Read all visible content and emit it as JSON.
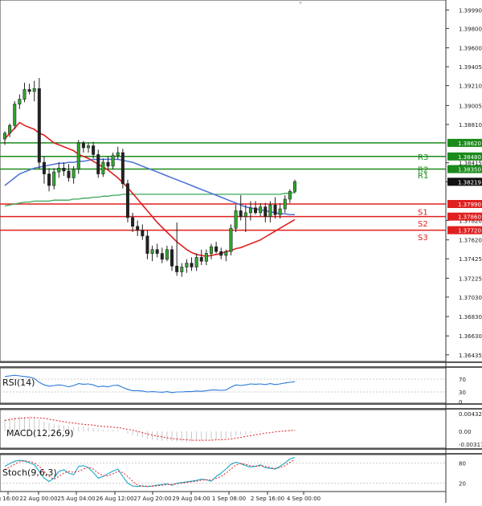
{
  "chart_data": {
    "type": "candlestick",
    "main": {
      "y_ticks": [
        "1.39990",
        "1.39800",
        "1.39600",
        "1.39405",
        "1.39210",
        "1.39005",
        "1.38810",
        "1.38415",
        "1.38219",
        "1.37820",
        "1.37620",
        "1.37425",
        "1.37225",
        "1.37030",
        "1.36830",
        "1.36630",
        "1.36435"
      ],
      "ylim": [
        1.364,
        1.4006
      ],
      "x_ticks": [
        "g 16:00",
        "22 Aug 00:00",
        "25 Aug 04:00",
        "26 Aug 12:00",
        "27 Aug 20:00",
        "29 Aug 04:00",
        "1 Sep 08:00",
        "2 Sep 16:00",
        "4 Sep 00:00"
      ],
      "candles": [
        {
          "o": 1.3866,
          "h": 1.3874,
          "l": 1.386,
          "c": 1.3872
        },
        {
          "o": 1.3872,
          "h": 1.3882,
          "l": 1.3868,
          "c": 1.388
        },
        {
          "o": 1.388,
          "h": 1.3905,
          "l": 1.3876,
          "c": 1.3902
        },
        {
          "o": 1.3902,
          "h": 1.3912,
          "l": 1.3897,
          "c": 1.3907
        },
        {
          "o": 1.3907,
          "h": 1.3924,
          "l": 1.3904,
          "c": 1.3917
        },
        {
          "o": 1.3917,
          "h": 1.3923,
          "l": 1.3912,
          "c": 1.3915
        },
        {
          "o": 1.3915,
          "h": 1.3926,
          "l": 1.3905,
          "c": 1.3918
        },
        {
          "o": 1.3918,
          "h": 1.3929,
          "l": 1.3835,
          "c": 1.3842
        },
        {
          "o": 1.3842,
          "h": 1.3848,
          "l": 1.382,
          "c": 1.383
        },
        {
          "o": 1.383,
          "h": 1.3836,
          "l": 1.3812,
          "c": 1.3818
        },
        {
          "o": 1.3818,
          "h": 1.3836,
          "l": 1.3814,
          "c": 1.3832
        },
        {
          "o": 1.3832,
          "h": 1.3842,
          "l": 1.3826,
          "c": 1.3836
        },
        {
          "o": 1.3836,
          "h": 1.3842,
          "l": 1.3828,
          "c": 1.3833
        },
        {
          "o": 1.3833,
          "h": 1.384,
          "l": 1.3822,
          "c": 1.3826
        },
        {
          "o": 1.3826,
          "h": 1.3838,
          "l": 1.382,
          "c": 1.3835
        },
        {
          "o": 1.3835,
          "h": 1.3865,
          "l": 1.383,
          "c": 1.3862
        },
        {
          "o": 1.3862,
          "h": 1.3864,
          "l": 1.3852,
          "c": 1.3857
        },
        {
          "o": 1.3857,
          "h": 1.3862,
          "l": 1.3852,
          "c": 1.3859
        },
        {
          "o": 1.3859,
          "h": 1.3863,
          "l": 1.3846,
          "c": 1.385
        },
        {
          "o": 1.385,
          "h": 1.3855,
          "l": 1.3826,
          "c": 1.383
        },
        {
          "o": 1.383,
          "h": 1.3846,
          "l": 1.3827,
          "c": 1.3842
        },
        {
          "o": 1.3842,
          "h": 1.3848,
          "l": 1.3834,
          "c": 1.3838
        },
        {
          "o": 1.3838,
          "h": 1.3852,
          "l": 1.3835,
          "c": 1.3849
        },
        {
          "o": 1.3849,
          "h": 1.3858,
          "l": 1.3845,
          "c": 1.3852
        },
        {
          "o": 1.3852,
          "h": 1.3856,
          "l": 1.3815,
          "c": 1.382
        },
        {
          "o": 1.382,
          "h": 1.3824,
          "l": 1.378,
          "c": 1.3785
        },
        {
          "o": 1.3785,
          "h": 1.379,
          "l": 1.377,
          "c": 1.3776
        },
        {
          "o": 1.3776,
          "h": 1.3782,
          "l": 1.3766,
          "c": 1.3772
        },
        {
          "o": 1.3772,
          "h": 1.3778,
          "l": 1.3762,
          "c": 1.3766
        },
        {
          "o": 1.3766,
          "h": 1.3772,
          "l": 1.3742,
          "c": 1.3748
        },
        {
          "o": 1.3748,
          "h": 1.3756,
          "l": 1.374,
          "c": 1.3752
        },
        {
          "o": 1.3752,
          "h": 1.3758,
          "l": 1.3744,
          "c": 1.3748
        },
        {
          "o": 1.3748,
          "h": 1.3754,
          "l": 1.3738,
          "c": 1.3742
        },
        {
          "o": 1.3742,
          "h": 1.3756,
          "l": 1.374,
          "c": 1.3752
        },
        {
          "o": 1.3752,
          "h": 1.3756,
          "l": 1.373,
          "c": 1.3735
        },
        {
          "o": 1.3735,
          "h": 1.378,
          "l": 1.3725,
          "c": 1.3729
        },
        {
          "o": 1.3729,
          "h": 1.3738,
          "l": 1.3724,
          "c": 1.3734
        },
        {
          "o": 1.3734,
          "h": 1.3742,
          "l": 1.3728,
          "c": 1.3738
        },
        {
          "o": 1.3738,
          "h": 1.3744,
          "l": 1.373,
          "c": 1.3734
        },
        {
          "o": 1.3734,
          "h": 1.3748,
          "l": 1.373,
          "c": 1.3744
        },
        {
          "o": 1.3744,
          "h": 1.3752,
          "l": 1.3736,
          "c": 1.374
        },
        {
          "o": 1.374,
          "h": 1.3752,
          "l": 1.3736,
          "c": 1.3748
        },
        {
          "o": 1.3748,
          "h": 1.3758,
          "l": 1.3742,
          "c": 1.3755
        },
        {
          "o": 1.3755,
          "h": 1.376,
          "l": 1.3748,
          "c": 1.375
        },
        {
          "o": 1.375,
          "h": 1.3754,
          "l": 1.3742,
          "c": 1.3746
        },
        {
          "o": 1.3746,
          "h": 1.3752,
          "l": 1.374,
          "c": 1.375
        },
        {
          "o": 1.375,
          "h": 1.3778,
          "l": 1.3746,
          "c": 1.3774
        },
        {
          "o": 1.3774,
          "h": 1.3798,
          "l": 1.377,
          "c": 1.3792
        },
        {
          "o": 1.3792,
          "h": 1.3808,
          "l": 1.3782,
          "c": 1.3786
        },
        {
          "o": 1.3786,
          "h": 1.3798,
          "l": 1.377,
          "c": 1.379
        },
        {
          "o": 1.379,
          "h": 1.3802,
          "l": 1.3782,
          "c": 1.3795
        },
        {
          "o": 1.3795,
          "h": 1.3802,
          "l": 1.3788,
          "c": 1.379
        },
        {
          "o": 1.379,
          "h": 1.38,
          "l": 1.3786,
          "c": 1.3796
        },
        {
          "o": 1.3796,
          "h": 1.38,
          "l": 1.378,
          "c": 1.3786
        },
        {
          "o": 1.3786,
          "h": 1.3802,
          "l": 1.378,
          "c": 1.3798
        },
        {
          "o": 1.3798,
          "h": 1.3806,
          "l": 1.3784,
          "c": 1.3788
        },
        {
          "o": 1.3788,
          "h": 1.38,
          "l": 1.3784,
          "c": 1.3794
        },
        {
          "o": 1.3794,
          "h": 1.3808,
          "l": 1.379,
          "c": 1.3804
        },
        {
          "o": 1.3804,
          "h": 1.3814,
          "l": 1.38,
          "c": 1.3812
        },
        {
          "o": 1.3812,
          "h": 1.3824,
          "l": 1.381,
          "c": 1.3822
        }
      ],
      "ma_slow_red": [
        1.3866,
        1.3872,
        1.3877,
        1.3883,
        1.388,
        1.3878,
        1.3876,
        1.3872,
        1.387,
        1.3866,
        1.3862,
        1.386,
        1.3858,
        1.3856,
        1.3854,
        1.385,
        1.3848,
        1.3846,
        1.3843,
        1.384,
        1.3837,
        1.3834,
        1.383,
        1.3826,
        1.3821,
        1.3816,
        1.381,
        1.3804,
        1.3798,
        1.3792,
        1.3786,
        1.378,
        1.3775,
        1.377,
        1.3765,
        1.376,
        1.3756,
        1.3752,
        1.3749,
        1.3747,
        1.3746,
        1.3745,
        1.3746,
        1.3747,
        1.3748,
        1.375,
        1.3751,
        1.3753,
        1.3754,
        1.3756,
        1.3758,
        1.376,
        1.3762,
        1.3765,
        1.3768,
        1.3771,
        1.3774,
        1.3777,
        1.378,
        1.3783
      ],
      "ma_blue": [
        1.3818,
        1.3822,
        1.3826,
        1.383,
        1.3832,
        1.3834,
        1.3836,
        1.3837,
        1.3838,
        1.3839,
        1.384,
        1.3841,
        1.3841,
        1.3842,
        1.3842,
        1.3843,
        1.3843,
        1.3844,
        1.3845,
        1.3845,
        1.3845,
        1.3845,
        1.3845,
        1.3845,
        1.3844,
        1.3843,
        1.3842,
        1.384,
        1.3838,
        1.3836,
        1.3834,
        1.3832,
        1.383,
        1.3828,
        1.3826,
        1.3824,
        1.3822,
        1.382,
        1.3818,
        1.3816,
        1.3814,
        1.3812,
        1.381,
        1.3808,
        1.3806,
        1.3804,
        1.3802,
        1.38,
        1.3798,
        1.3796,
        1.3795,
        1.3794,
        1.3793,
        1.3792,
        1.3791,
        1.379,
        1.3789,
        1.3789,
        1.3788,
        1.3788
      ],
      "ma_green": [
        1.3797,
        1.3798,
        1.3799,
        1.38,
        1.3801,
        1.3801,
        1.3802,
        1.3802,
        1.3802,
        1.3802,
        1.3803,
        1.3803,
        1.3803,
        1.3803,
        1.3804,
        1.3804,
        1.3805,
        1.3805,
        1.3806,
        1.3806,
        1.3807,
        1.3807,
        1.3808,
        1.3808,
        1.3809,
        1.3809,
        1.3809,
        1.3809,
        1.3809,
        1.3809,
        1.3809,
        1.3809,
        1.3809,
        1.3809,
        1.3809,
        1.3809,
        1.3809,
        1.3809,
        1.3809,
        1.3809,
        1.3809,
        1.3809,
        1.3809,
        1.3809,
        1.3809,
        1.3809,
        1.3809,
        1.3809,
        1.3809,
        1.3809,
        1.3809,
        1.3809,
        1.3809,
        1.3809,
        1.3809,
        1.3809,
        1.3809,
        1.381,
        1.381,
        1.3811
      ],
      "levels": [
        {
          "value": 1.3862,
          "label": "",
          "tag": "1.38620",
          "color": "#1a8a1a"
        },
        {
          "value": 1.3848,
          "label": "R3",
          "tag": "1.38480",
          "color": "#1a8a1a"
        },
        {
          "value": 1.3835,
          "label": "R2",
          "tag": "1.38350",
          "color": "#1a8a1a"
        },
        {
          "value": 1.3829,
          "label": "R1",
          "tag": "",
          "color": "#1a8a1a"
        },
        {
          "value": 1.3799,
          "label": "",
          "tag": "1.37990",
          "color": "#e02020"
        },
        {
          "value": 1.3791,
          "label": "S1",
          "tag": "",
          "color": "#e02020"
        },
        {
          "value": 1.3786,
          "label": "",
          "tag": "1.37860",
          "color": "#e02020"
        },
        {
          "value": 1.3779,
          "label": "S2",
          "tag": "",
          "color": "#e02020"
        },
        {
          "value": 1.3772,
          "label": "",
          "tag": "1.37720",
          "color": "#e02020"
        },
        {
          "value": 1.3765,
          "label": "S3",
          "tag": "",
          "color": "#e02020"
        }
      ],
      "current_price": "1.38219"
    },
    "rsi": {
      "label": "RSI(14)",
      "y_ticks": [
        "70",
        "30",
        "0"
      ],
      "ylim": [
        0,
        100
      ],
      "values": [
        78,
        80,
        82,
        80,
        78,
        76,
        72,
        60,
        52,
        48,
        50,
        52,
        50,
        46,
        50,
        56,
        54,
        55,
        52,
        46,
        48,
        46,
        50,
        51,
        44,
        38,
        34,
        34,
        33,
        30,
        31,
        30,
        29,
        31,
        28,
        30,
        30,
        31,
        31,
        33,
        32,
        34,
        36,
        36,
        35,
        36,
        45,
        52,
        50,
        52,
        55,
        54,
        55,
        53,
        56,
        53,
        55,
        58,
        60,
        62
      ]
    },
    "macd": {
      "label": "MACD(12,26,9)",
      "y_ticks": [
        "0.00432",
        "0.00",
        "-0.003178"
      ],
      "ylim": [
        -0.0036,
        0.0048
      ],
      "hist": [
        0.003,
        0.0032,
        0.0034,
        0.0036,
        0.0035,
        0.0034,
        0.0033,
        0.0028,
        0.0024,
        0.002,
        0.0018,
        0.0016,
        0.0014,
        0.0012,
        0.0011,
        0.0012,
        0.0011,
        0.001,
        0.0008,
        0.0005,
        0.0004,
        0.0003,
        0.0003,
        0.0003,
        0.0,
        -0.0005,
        -0.0009,
        -0.0012,
        -0.0015,
        -0.0018,
        -0.002,
        -0.0021,
        -0.0022,
        -0.0022,
        -0.0023,
        -0.0024,
        -0.0024,
        -0.0024,
        -0.0024,
        -0.0023,
        -0.0022,
        -0.0021,
        -0.002,
        -0.0019,
        -0.0018,
        -0.0017,
        -0.0014,
        -0.001,
        -0.0008,
        -0.0006,
        -0.0004,
        -0.0003,
        -0.0002,
        -0.0001,
        0.0,
        0.0,
        0.0001,
        0.0002,
        0.0003,
        0.0004
      ],
      "signal": [
        0.0026,
        0.0028,
        0.003,
        0.0031,
        0.0032,
        0.0033,
        0.0033,
        0.0032,
        0.0031,
        0.0029,
        0.0027,
        0.0025,
        0.0023,
        0.0021,
        0.002,
        0.0018,
        0.0017,
        0.0016,
        0.0015,
        0.0013,
        0.0012,
        0.0011,
        0.001,
        0.0009,
        0.0007,
        0.0005,
        0.0003,
        0.0,
        -0.0003,
        -0.0006,
        -0.0009,
        -0.0011,
        -0.0013,
        -0.0015,
        -0.0017,
        -0.0018,
        -0.0019,
        -0.002,
        -0.0021,
        -0.0021,
        -0.0021,
        -0.0021,
        -0.0021,
        -0.002,
        -0.002,
        -0.0019,
        -0.0018,
        -0.0016,
        -0.0014,
        -0.0012,
        -0.001,
        -0.0008,
        -0.0006,
        -0.0004,
        -0.0003,
        -0.0001,
        0.0,
        0.0001,
        0.0002,
        0.0003
      ]
    },
    "stoch": {
      "label": "Stoch(9,6,3)",
      "y_ticks": [
        "80",
        "20"
      ],
      "ylim": [
        0,
        100
      ],
      "k": [
        70,
        78,
        85,
        88,
        86,
        80,
        75,
        55,
        35,
        25,
        35,
        55,
        60,
        50,
        45,
        70,
        72,
        66,
        52,
        35,
        40,
        48,
        56,
        62,
        40,
        20,
        12,
        10,
        12,
        10,
        12,
        14,
        16,
        18,
        14,
        20,
        22,
        24,
        26,
        28,
        32,
        30,
        26,
        40,
        50,
        62,
        76,
        82,
        78,
        72,
        68,
        70,
        74,
        66,
        64,
        62,
        70,
        80,
        92,
        96
      ],
      "d": [
        60,
        68,
        76,
        84,
        86,
        84,
        80,
        70,
        55,
        40,
        32,
        40,
        50,
        55,
        52,
        55,
        62,
        68,
        62,
        50,
        42,
        42,
        48,
        55,
        52,
        40,
        26,
        14,
        11,
        11,
        11,
        12,
        14,
        16,
        16,
        18,
        20,
        22,
        24,
        26,
        29,
        30,
        29,
        34,
        40,
        50,
        62,
        74,
        78,
        76,
        72,
        70,
        72,
        70,
        66,
        64,
        66,
        72,
        82,
        90
      ]
    }
  }
}
